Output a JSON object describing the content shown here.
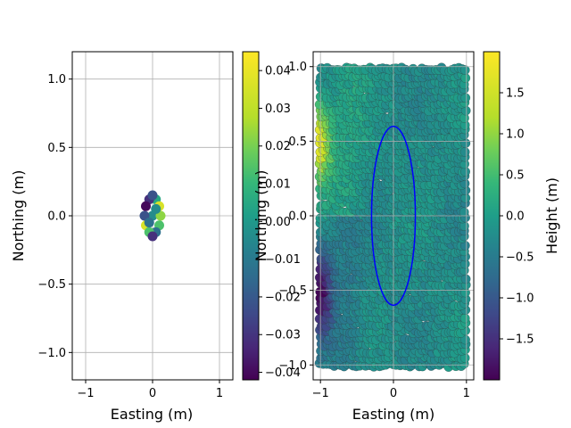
{
  "chart_data": [
    {
      "type": "scatter",
      "xlabel": "Easting (m)",
      "ylabel": "Northing (m)",
      "xlim": [
        -1.2,
        1.2
      ],
      "ylim": [
        -1.2,
        1.2
      ],
      "xticks": [
        -1,
        0,
        1
      ],
      "yticks": [
        -1.0,
        -0.5,
        0.0,
        0.5,
        1.0
      ],
      "xticklabels": [
        "−1",
        "0",
        "1"
      ],
      "yticklabels": [
        "−1.0",
        "−0.5",
        "0.0",
        "0.5",
        "1.0"
      ],
      "grid": true,
      "colormap": "viridis",
      "colorbar": {
        "vmin": -0.042,
        "vmax": 0.045,
        "ticks": [
          -0.04,
          -0.03,
          -0.02,
          -0.01,
          0.0,
          0.01,
          0.02,
          0.03,
          0.04
        ],
        "ticklabels": [
          "−0.04",
          "−0.03",
          "−0.02",
          "−0.01",
          "0.00",
          "0.01",
          "0.02",
          "0.03",
          "0.04"
        ],
        "label": ""
      },
      "points": [
        {
          "x": 0.0,
          "y": 0.0,
          "v": 0.0
        },
        {
          "x": 0.05,
          "y": 0.12,
          "v": 0.01
        },
        {
          "x": -0.05,
          "y": 0.12,
          "v": -0.03
        },
        {
          "x": 0.1,
          "y": 0.07,
          "v": 0.04
        },
        {
          "x": -0.1,
          "y": 0.07,
          "v": -0.04
        },
        {
          "x": 0.12,
          "y": 0.0,
          "v": 0.03
        },
        {
          "x": -0.12,
          "y": 0.0,
          "v": -0.02
        },
        {
          "x": 0.1,
          "y": -0.07,
          "v": 0.02
        },
        {
          "x": -0.1,
          "y": -0.07,
          "v": 0.04
        },
        {
          "x": 0.05,
          "y": -0.12,
          "v": -0.01
        },
        {
          "x": -0.05,
          "y": -0.12,
          "v": 0.02
        },
        {
          "x": 0.0,
          "y": 0.15,
          "v": -0.02
        },
        {
          "x": 0.0,
          "y": -0.15,
          "v": -0.03
        },
        {
          "x": 0.05,
          "y": 0.05,
          "v": 0.0
        },
        {
          "x": -0.05,
          "y": -0.05,
          "v": -0.01
        }
      ]
    },
    {
      "type": "scatter",
      "xlabel": "Easting (m)",
      "ylabel": "Northing (m)",
      "xlim": [
        -1.1,
        1.1
      ],
      "ylim": [
        -1.1,
        1.1
      ],
      "xticks": [
        -1,
        0,
        1
      ],
      "yticks": [
        -1.0,
        -0.5,
        0.0,
        0.5,
        1.0
      ],
      "xticklabels": [
        "−1",
        "0",
        "1"
      ],
      "yticklabels": [
        "−1.0",
        "−0.5",
        "0.0",
        "0.5",
        "1.0"
      ],
      "grid": true,
      "colormap": "viridis",
      "point_extent": {
        "x": [
          -1.0,
          1.0
        ],
        "y": [
          -1.0,
          1.0
        ]
      },
      "ellipse": {
        "cx": 0.0,
        "cy": 0.0,
        "rx": 0.3,
        "ry": 0.6,
        "color": "#0000ff"
      },
      "colorbar": {
        "vmin": -2.0,
        "vmax": 2.0,
        "ticks": [
          -1.5,
          -1.0,
          -0.5,
          0.0,
          0.5,
          1.0,
          1.5
        ],
        "ticklabels": [
          "−1.5",
          "−1.0",
          "−0.5",
          "0.0",
          "0.5",
          "1.0",
          "1.5"
        ],
        "label": "Height (m)"
      }
    }
  ]
}
